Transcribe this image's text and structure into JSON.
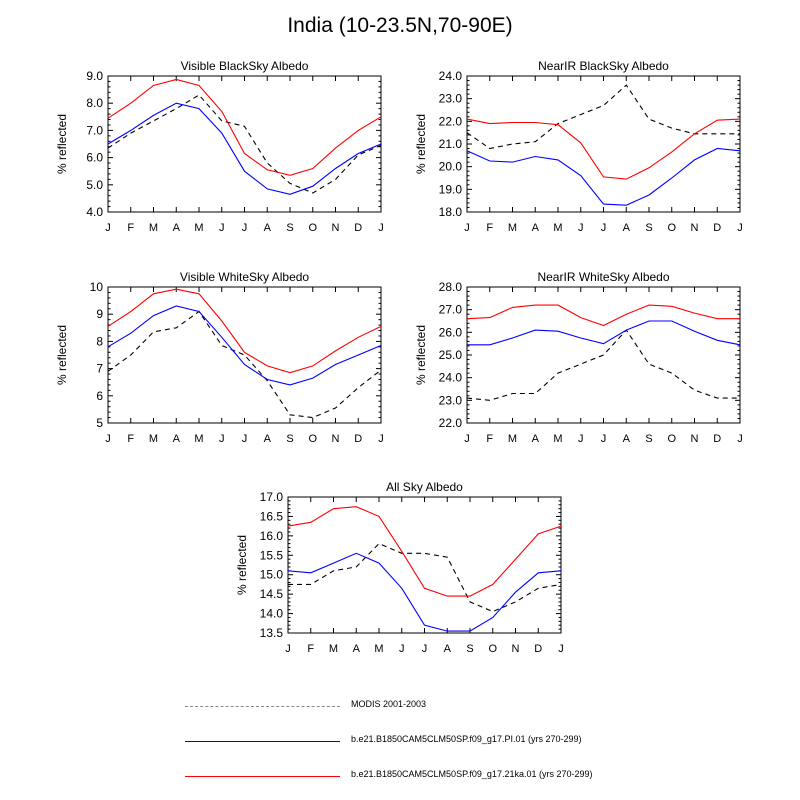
{
  "title": "India (10-23.5N,70-90E)",
  "colors": {
    "modis": "#000000",
    "pi": "#0000ff",
    "ka21": "#ff0000"
  },
  "legend": [
    {
      "name": "MODIS 2001-2003",
      "color": "#888888",
      "style": "dashed"
    },
    {
      "name": "b.e21.B1850CAM5CLM50SP.f09_g17.PI.01 (yrs 270-299)",
      "color": "#0000ff",
      "style": "solid"
    },
    {
      "name": "b.e21.B1850CAM5CLM50SP.f09_g17.21ka.01 (yrs 270-299)",
      "color": "#ff0000",
      "style": "solid"
    }
  ],
  "chart_data": [
    {
      "type": "line",
      "title": "Visible BlackSky Albedo",
      "ylabel": "% reflected",
      "categories": [
        "J",
        "F",
        "M",
        "A",
        "M",
        "J",
        "J",
        "A",
        "S",
        "O",
        "N",
        "D",
        "J"
      ],
      "ylim": [
        4.0,
        9.0
      ],
      "yticks": [
        "4.0",
        "5.0",
        "6.0",
        "7.0",
        "8.0",
        "9.0"
      ],
      "series": [
        {
          "key": "modis",
          "values": [
            6.35,
            6.9,
            7.35,
            7.8,
            8.3,
            7.35,
            7.15,
            5.8,
            5.05,
            4.7,
            5.2,
            6.1,
            6.45
          ]
        },
        {
          "key": "pi",
          "values": [
            6.5,
            7.0,
            7.55,
            8.0,
            7.8,
            6.9,
            5.5,
            4.85,
            4.65,
            4.95,
            5.6,
            6.15,
            6.5
          ]
        },
        {
          "key": "ka21",
          "values": [
            7.45,
            8.0,
            8.65,
            8.87,
            8.65,
            7.7,
            6.15,
            5.55,
            5.35,
            5.6,
            6.35,
            7.0,
            7.5
          ]
        }
      ]
    },
    {
      "type": "line",
      "title": "NearIR BlackSky Albedo",
      "ylabel": "% reflected",
      "categories": [
        "J",
        "F",
        "M",
        "A",
        "M",
        "J",
        "J",
        "A",
        "S",
        "O",
        "N",
        "D",
        "J"
      ],
      "ylim": [
        18.0,
        24.0
      ],
      "yticks": [
        "18.0",
        "19.0",
        "20.0",
        "21.0",
        "22.0",
        "23.0",
        "24.0"
      ],
      "series": [
        {
          "key": "modis",
          "values": [
            21.5,
            20.8,
            21.0,
            21.1,
            21.9,
            22.3,
            22.7,
            23.6,
            22.1,
            21.7,
            21.45,
            21.45,
            21.45
          ]
        },
        {
          "key": "pi",
          "values": [
            20.7,
            20.25,
            20.2,
            20.45,
            20.3,
            19.6,
            18.35,
            18.3,
            18.75,
            19.5,
            20.3,
            20.8,
            20.7
          ]
        },
        {
          "key": "ka21",
          "values": [
            22.1,
            21.9,
            21.95,
            21.95,
            21.85,
            21.05,
            19.55,
            19.45,
            19.95,
            20.65,
            21.45,
            22.05,
            22.1
          ]
        }
      ]
    },
    {
      "type": "line",
      "title": "Visible WhiteSky Albedo",
      "ylabel": "% reflected",
      "categories": [
        "J",
        "F",
        "M",
        "A",
        "M",
        "J",
        "J",
        "A",
        "S",
        "O",
        "N",
        "D",
        "J"
      ],
      "ylim": [
        5,
        10
      ],
      "yticks": [
        "5",
        "6",
        "7",
        "8",
        "9",
        "10"
      ],
      "series": [
        {
          "key": "modis",
          "values": [
            6.9,
            7.5,
            8.35,
            8.5,
            9.1,
            7.85,
            7.5,
            6.55,
            5.3,
            5.2,
            5.55,
            6.3,
            6.95
          ]
        },
        {
          "key": "pi",
          "values": [
            7.8,
            8.3,
            8.95,
            9.3,
            9.1,
            8.15,
            7.15,
            6.6,
            6.4,
            6.65,
            7.15,
            7.5,
            7.85
          ]
        },
        {
          "key": "ka21",
          "values": [
            8.55,
            9.1,
            9.75,
            9.92,
            9.75,
            8.75,
            7.6,
            7.1,
            6.85,
            7.1,
            7.65,
            8.15,
            8.55
          ]
        }
      ]
    },
    {
      "type": "line",
      "title": "NearIR WhiteSky Albedo",
      "ylabel": "% reflected",
      "categories": [
        "J",
        "F",
        "M",
        "A",
        "M",
        "J",
        "J",
        "A",
        "S",
        "O",
        "N",
        "D",
        "J"
      ],
      "ylim": [
        22.0,
        28.0
      ],
      "yticks": [
        "22.0",
        "23.0",
        "24.0",
        "25.0",
        "26.0",
        "27.0",
        "28.0"
      ],
      "series": [
        {
          "key": "modis",
          "values": [
            23.1,
            23.0,
            23.3,
            23.3,
            24.2,
            24.6,
            25.0,
            26.1,
            24.6,
            24.2,
            23.45,
            23.1,
            23.1
          ]
        },
        {
          "key": "pi",
          "values": [
            25.45,
            25.45,
            25.75,
            26.1,
            26.05,
            25.75,
            25.5,
            26.1,
            26.5,
            26.5,
            26.05,
            25.65,
            25.45
          ]
        },
        {
          "key": "ka21",
          "values": [
            26.6,
            26.65,
            27.1,
            27.2,
            27.2,
            26.65,
            26.3,
            26.8,
            27.2,
            27.15,
            26.85,
            26.6,
            26.6
          ]
        }
      ]
    },
    {
      "type": "line",
      "title": "All Sky Albedo",
      "ylabel": "% reflected",
      "categories": [
        "J",
        "F",
        "M",
        "A",
        "M",
        "J",
        "J",
        "A",
        "S",
        "O",
        "N",
        "D",
        "J"
      ],
      "ylim": [
        13.5,
        17.0
      ],
      "yticks": [
        "13.5",
        "14.0",
        "14.5",
        "15.0",
        "15.5",
        "16.0",
        "16.5",
        "17.0"
      ],
      "series": [
        {
          "key": "modis",
          "values": [
            14.75,
            14.75,
            15.1,
            15.2,
            15.8,
            15.55,
            15.55,
            15.45,
            14.3,
            14.05,
            14.3,
            14.65,
            14.75
          ]
        },
        {
          "key": "pi",
          "values": [
            15.1,
            15.05,
            15.3,
            15.55,
            15.3,
            14.65,
            13.7,
            13.55,
            13.55,
            13.9,
            14.55,
            15.05,
            15.1
          ]
        },
        {
          "key": "ka21",
          "values": [
            16.25,
            16.35,
            16.7,
            16.75,
            16.5,
            15.6,
            14.65,
            14.45,
            14.45,
            14.75,
            15.4,
            16.05,
            16.25
          ]
        }
      ]
    }
  ]
}
